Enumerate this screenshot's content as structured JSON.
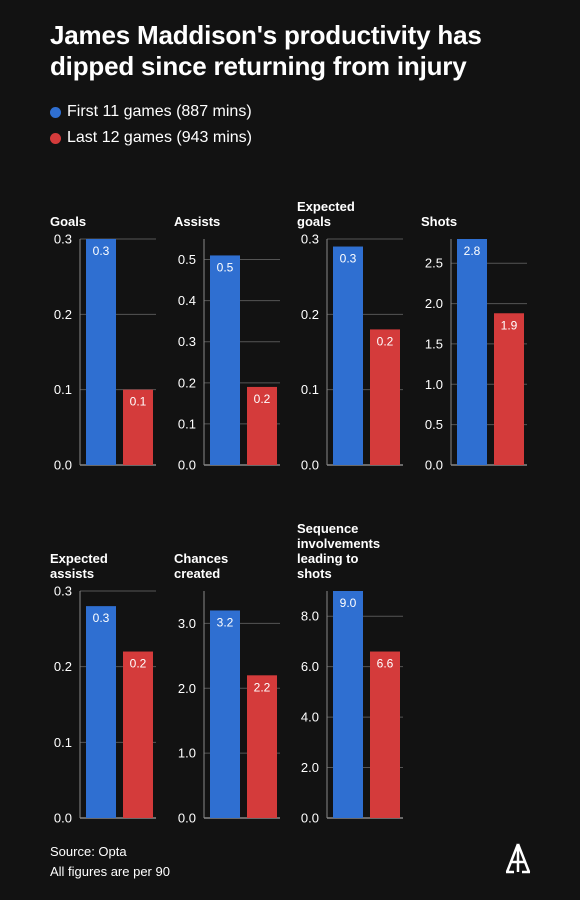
{
  "title": "James Maddison's productivity has dipped since returning from injury",
  "legend": [
    {
      "label": "First 11 games (887 mins)",
      "color": "#2f6fd1"
    },
    {
      "label": "Last 12 games (943 mins)",
      "color": "#d43b3b"
    }
  ],
  "footer": {
    "source": "Source: Opta",
    "note": "All figures are per 90"
  },
  "logo_icon": "athletic-logo-icon",
  "chart_data": [
    {
      "type": "bar",
      "title": "Goals",
      "categories": [
        "First 11 games (887 mins)",
        "Last 12 games (943 mins)"
      ],
      "values": [
        0.3,
        0.1
      ],
      "labels": [
        "0.3",
        "0.1"
      ],
      "ylim": [
        0,
        0.3
      ],
      "ticks": [
        0.0,
        0.1,
        0.2,
        0.3
      ],
      "tick_labels": [
        "0.0",
        "0.1",
        "0.2",
        "0.3"
      ],
      "colors": [
        "#2f6fd1",
        "#d43b3b"
      ],
      "grid": true
    },
    {
      "type": "bar",
      "title": "Assists",
      "categories": [
        "First 11 games (887 mins)",
        "Last 12 games (943 mins)"
      ],
      "values": [
        0.51,
        0.19
      ],
      "labels": [
        "0.5",
        "0.2"
      ],
      "ylim": [
        0,
        0.55
      ],
      "ticks": [
        0.0,
        0.1,
        0.2,
        0.3,
        0.4,
        0.5
      ],
      "tick_labels": [
        "0.0",
        "0.1",
        "0.2",
        "0.3",
        "0.4",
        "0.5"
      ],
      "colors": [
        "#2f6fd1",
        "#d43b3b"
      ],
      "grid": true
    },
    {
      "type": "bar",
      "title": "Expected goals",
      "categories": [
        "First 11 games (887 mins)",
        "Last 12 games (943 mins)"
      ],
      "values": [
        0.29,
        0.18
      ],
      "labels": [
        "0.3",
        "0.2"
      ],
      "ylim": [
        0,
        0.3
      ],
      "ticks": [
        0.0,
        0.1,
        0.2,
        0.3
      ],
      "tick_labels": [
        "0.0",
        "0.1",
        "0.2",
        "0.3"
      ],
      "colors": [
        "#2f6fd1",
        "#d43b3b"
      ],
      "grid": true
    },
    {
      "type": "bar",
      "title": "Shots",
      "categories": [
        "First 11 games (887 mins)",
        "Last 12 games (943 mins)"
      ],
      "values": [
        2.8,
        1.88
      ],
      "labels": [
        "2.8",
        "1.9"
      ],
      "ylim": [
        0,
        2.8
      ],
      "ticks": [
        0.0,
        0.5,
        1.0,
        1.5,
        2.0,
        2.5
      ],
      "tick_labels": [
        "0.0",
        "0.5",
        "1.0",
        "1.5",
        "2.0",
        "2.5"
      ],
      "colors": [
        "#2f6fd1",
        "#d43b3b"
      ],
      "grid": true
    },
    {
      "type": "bar",
      "title": "Expected assists",
      "categories": [
        "First 11 games (887 mins)",
        "Last 12 games (943 mins)"
      ],
      "values": [
        0.28,
        0.22
      ],
      "labels": [
        "0.3",
        "0.2"
      ],
      "ylim": [
        0,
        0.3
      ],
      "ticks": [
        0.0,
        0.1,
        0.2,
        0.3
      ],
      "tick_labels": [
        "0.0",
        "0.1",
        "0.2",
        "0.3"
      ],
      "colors": [
        "#2f6fd1",
        "#d43b3b"
      ],
      "grid": true
    },
    {
      "type": "bar",
      "title": "Chances created",
      "categories": [
        "First 11 games (887 mins)",
        "Last 12 games (943 mins)"
      ],
      "values": [
        3.2,
        2.2
      ],
      "labels": [
        "3.2",
        "2.2"
      ],
      "ylim": [
        0,
        3.5
      ],
      "ticks": [
        0.0,
        1.0,
        2.0,
        3.0
      ],
      "tick_labels": [
        "0.0",
        "1.0",
        "2.0",
        "3.0"
      ],
      "colors": [
        "#2f6fd1",
        "#d43b3b"
      ],
      "grid": true
    },
    {
      "type": "bar",
      "title": "Sequence involvements leading to shots",
      "categories": [
        "First 11 games (887 mins)",
        "Last 12 games (943 mins)"
      ],
      "values": [
        9.0,
        6.6
      ],
      "labels": [
        "9.0",
        "6.6"
      ],
      "ylim": [
        0,
        9.0
      ],
      "ticks": [
        0.0,
        2.0,
        4.0,
        6.0,
        8.0
      ],
      "tick_labels": [
        "0.0",
        "2.0",
        "4.0",
        "6.0",
        "8.0"
      ],
      "colors": [
        "#2f6fd1",
        "#d43b3b"
      ],
      "grid": true
    }
  ]
}
